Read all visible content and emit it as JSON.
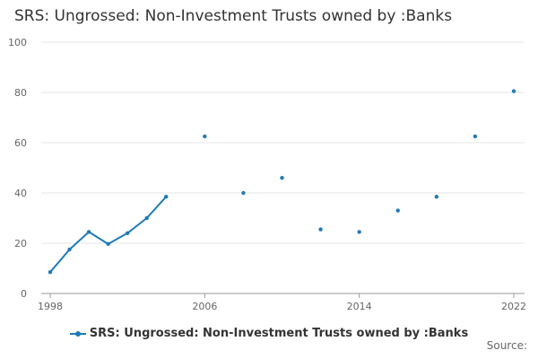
{
  "page": {
    "title": "SRS: Ungrossed: Non-Investment Trusts owned by :Banks",
    "source_label": "Source:"
  },
  "colors": {
    "series": "#1f7bb6",
    "grid": "#e6e6e6",
    "axis": "#999999"
  },
  "chart_data": {
    "type": "line",
    "title": "SRS: Ungrossed: Non-Investment Trusts owned by :Banks",
    "xlabel": "",
    "ylabel": "",
    "xlim": [
      1998,
      2022
    ],
    "ylim": [
      0,
      100
    ],
    "x_ticks": [
      1998,
      2006,
      2014,
      2022
    ],
    "y_ticks": [
      0,
      20,
      40,
      60,
      80,
      100
    ],
    "grid": true,
    "legend": "bottom-center",
    "series": [
      {
        "name": "SRS: Ungrossed: Non-Investment Trusts owned by :Banks",
        "points": [
          {
            "x": 1998,
            "y": 8.5
          },
          {
            "x": 1999,
            "y": 17.5
          },
          {
            "x": 2000,
            "y": 24.5
          },
          {
            "x": 2001,
            "y": 19.7
          },
          {
            "x": 2002,
            "y": 24.0
          },
          {
            "x": 2003,
            "y": 30.0
          },
          {
            "x": 2004,
            "y": 38.5
          },
          {
            "x": 2006,
            "y": 62.5
          },
          {
            "x": 2008,
            "y": 40.0
          },
          {
            "x": 2010,
            "y": 46.0
          },
          {
            "x": 2012,
            "y": 25.5
          },
          {
            "x": 2014,
            "y": 24.5
          },
          {
            "x": 2016,
            "y": 33.0
          },
          {
            "x": 2018,
            "y": 38.5
          },
          {
            "x": 2020,
            "y": 62.5
          },
          {
            "x": 2022,
            "y": 80.5
          }
        ]
      }
    ]
  }
}
